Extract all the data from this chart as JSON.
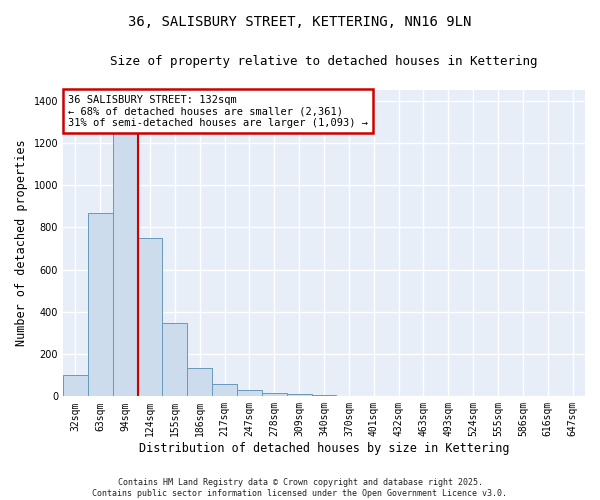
{
  "title": "36, SALISBURY STREET, KETTERING, NN16 9LN",
  "subtitle": "Size of property relative to detached houses in Kettering",
  "xlabel": "Distribution of detached houses by size in Kettering",
  "ylabel": "Number of detached properties",
  "bar_color": "#ccdcec",
  "bar_edge_color": "#6699bb",
  "background_color": "#e8eef8",
  "grid_color": "#ffffff",
  "fig_background": "#ffffff",
  "categories": [
    "32sqm",
    "63sqm",
    "94sqm",
    "124sqm",
    "155sqm",
    "186sqm",
    "217sqm",
    "247sqm",
    "278sqm",
    "309sqm",
    "340sqm",
    "370sqm",
    "401sqm",
    "432sqm",
    "463sqm",
    "493sqm",
    "524sqm",
    "555sqm",
    "586sqm",
    "616sqm",
    "647sqm"
  ],
  "values": [
    100,
    870,
    1310,
    750,
    345,
    135,
    60,
    28,
    18,
    13,
    7,
    0,
    0,
    0,
    0,
    0,
    0,
    0,
    0,
    0,
    0
  ],
  "annotation_text": "36 SALISBURY STREET: 132sqm\n← 68% of detached houses are smaller (2,361)\n31% of semi-detached houses are larger (1,093) →",
  "annotation_box_color": "#ffffff",
  "annotation_box_edge_color": "#cc0000",
  "vline_color": "#cc0000",
  "vline_x": 2.5,
  "ylim": [
    0,
    1450
  ],
  "yticks": [
    0,
    200,
    400,
    600,
    800,
    1000,
    1200,
    1400
  ],
  "footer_text": "Contains HM Land Registry data © Crown copyright and database right 2025.\nContains public sector information licensed under the Open Government Licence v3.0.",
  "title_fontsize": 10,
  "subtitle_fontsize": 9,
  "annot_fontsize": 7.5,
  "tick_fontsize": 7,
  "ylabel_fontsize": 8.5,
  "xlabel_fontsize": 8.5,
  "footer_fontsize": 6
}
